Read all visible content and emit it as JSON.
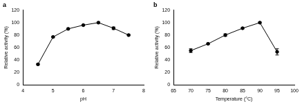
{
  "chart_data": [
    {
      "type": "line",
      "title": "a",
      "x_label": "pH",
      "y_label": "Relative activity (%)",
      "x": [
        4.5,
        5,
        5.5,
        6,
        6.5,
        7,
        7.5
      ],
      "values": [
        33,
        77,
        90,
        96,
        100,
        91,
        80
      ],
      "errors": [
        1,
        1,
        1,
        1,
        1,
        2,
        1
      ],
      "color": "#000000",
      "marker": "circle",
      "line_style": "solid",
      "xlim": [
        4,
        8
      ],
      "xticks": [
        4,
        5,
        6,
        7,
        8
      ],
      "ylim": [
        0,
        120
      ],
      "yticks": [
        0,
        20,
        40,
        60,
        80,
        100,
        120
      ],
      "grid": false
    },
    {
      "type": "line",
      "title": "b",
      "x_label": "Temperature (°C)",
      "y_label": "Relative activity (%)",
      "x": [
        70,
        75,
        80,
        85,
        90,
        95
      ],
      "values": [
        55,
        66,
        80,
        91,
        100,
        53
      ],
      "errors": [
        3,
        1,
        2,
        1,
        1,
        5
      ],
      "color": "#000000",
      "marker": "circle",
      "line_style": "solid",
      "xlim": [
        65,
        100
      ],
      "xticks": [
        65,
        70,
        75,
        80,
        85,
        90,
        95,
        100
      ],
      "ylim": [
        0,
        120
      ],
      "yticks": [
        0,
        20,
        40,
        60,
        80,
        100,
        120
      ],
      "grid": false
    }
  ]
}
